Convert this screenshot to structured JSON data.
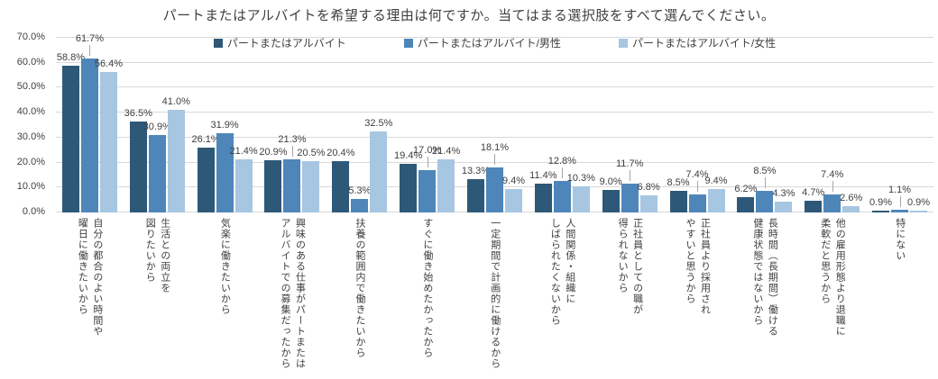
{
  "title": "パートまたはアルバイトを希望する理由は何ですか。当てはまる選択肢をすべて選んでください。",
  "colors": {
    "grid": "#d9d9d9",
    "text": "#3f3f3f",
    "leader_line": "#a6a6a6",
    "series_dark_blue": "#2e5877",
    "series_medium_blue": "#4e86ba",
    "series_light_blue": "#a7c6e1"
  },
  "chart_data": {
    "type": "bar",
    "title": "パートまたはアルバイトを希望する理由は何ですか。当てはまる選択肢をすべて選んでください。",
    "categories": [
      "自分の都合のよい時間や\n曜日に働きたいから",
      "生活との両立を\n図りたいから",
      "気楽に働きたいから",
      "興味のある仕事がパートまたは\nアルバイトでの募集だったから",
      "扶養の範囲内で働きたいから",
      "すぐに働き始めたかったから",
      "一定期間で計画的に働けるから",
      "人間関係・組織に\nしばられたくないから",
      "正社員としての職が\n得られないから",
      "正社員より採用され\nやすいと思うから",
      "長時間（長期間）働ける\n健康状態ではないから",
      "他の雇用形態より退職に\n柔軟だと思うから",
      "特にない"
    ],
    "series": [
      {
        "name": "パートまたはアルバイト",
        "color": "#2e5877",
        "values": [
          58.8,
          36.5,
          26.1,
          20.9,
          20.4,
          19.4,
          13.3,
          11.4,
          9.0,
          8.5,
          6.2,
          4.7,
          0.9
        ]
      },
      {
        "name": "パートまたはアルバイト/男性",
        "color": "#4e86ba",
        "values": [
          61.7,
          30.9,
          31.9,
          21.3,
          5.3,
          17.0,
          18.1,
          12.8,
          11.7,
          7.4,
          8.5,
          7.4,
          1.1
        ]
      },
      {
        "name": "パートまたはアルバイト/女性",
        "color": "#a7c6e1",
        "values": [
          56.4,
          41.0,
          21.4,
          20.5,
          32.5,
          21.4,
          9.4,
          10.3,
          6.8,
          9.4,
          4.3,
          2.6,
          0.9
        ]
      }
    ],
    "ylim": [
      0,
      70
    ],
    "y_tick_step": 10,
    "y_ticks": [
      "0.0%",
      "10.0%",
      "20.0%",
      "30.0%",
      "40.0%",
      "50.0%",
      "60.0%",
      "70.0%"
    ],
    "data_label_format": "one_decimal_percent",
    "grid": true,
    "legend_position": "top",
    "data_labels": true
  }
}
